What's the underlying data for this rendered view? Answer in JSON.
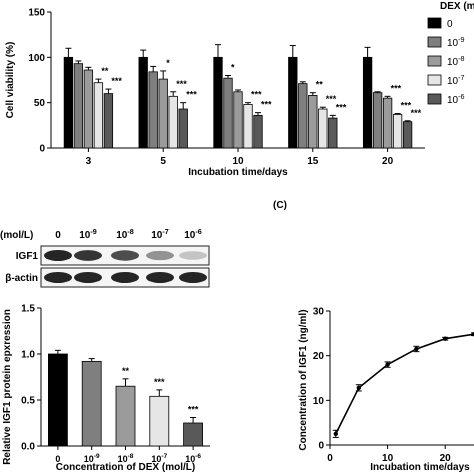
{
  "chart_data": [
    {
      "type": "bar",
      "ylabel": "Cell viability (%)",
      "xlabel": "Incubation time/days",
      "ylim": [
        0,
        150
      ],
      "yticks": [
        0,
        50,
        100,
        150
      ],
      "categories": [
        "3",
        "5",
        "10",
        "15",
        "20"
      ],
      "legend": {
        "title": "DEX (mo",
        "position": "right",
        "entries": [
          {
            "base": "0",
            "exp": "",
            "color": "#000000"
          },
          {
            "base": "10",
            "exp": "-9",
            "color": "#7f7f7f"
          },
          {
            "base": "10",
            "exp": "-8",
            "color": "#9b9b9b"
          },
          {
            "base": "10",
            "exp": "-7",
            "color": "#e6e6e6"
          },
          {
            "base": "10",
            "exp": "-6",
            "color": "#595959"
          }
        ]
      },
      "series": [
        {
          "values": [
            100,
            100,
            100,
            100,
            100
          ],
          "errors": [
            10,
            8,
            14,
            13,
            11
          ],
          "sig": [
            "",
            "",
            "",
            "",
            ""
          ]
        },
        {
          "values": [
            93,
            84,
            77,
            71,
            61
          ],
          "errors": [
            3,
            6,
            3,
            2,
            1
          ],
          "sig": [
            "",
            "",
            "*",
            "",
            ""
          ]
        },
        {
          "values": [
            86,
            76,
            62,
            58,
            55
          ],
          "errors": [
            3,
            9,
            2,
            3,
            2
          ],
          "sig": [
            "",
            "*",
            "",
            "**",
            "***"
          ]
        },
        {
          "values": [
            72,
            57,
            48,
            43,
            37
          ],
          "errors": [
            4,
            5,
            2,
            2,
            1
          ],
          "sig": [
            "**",
            "***",
            "***",
            "***",
            "***"
          ]
        },
        {
          "values": [
            60,
            43,
            36,
            33,
            29
          ],
          "errors": [
            5,
            7,
            3,
            3,
            1
          ],
          "sig": [
            "***",
            "***",
            "***",
            "***",
            "***"
          ]
        }
      ]
    },
    {
      "type": "bar",
      "ylabel": "Relative IGF1 protein epxression",
      "xlabel": "Concentration of DEX (mol/L)",
      "ylim": [
        0,
        1.5
      ],
      "yticks": [
        "0.0",
        "0.5",
        "1.0",
        "1.5"
      ],
      "categories": [
        {
          "base": "0",
          "exp": ""
        },
        {
          "base": "10",
          "exp": "-9"
        },
        {
          "base": "10",
          "exp": "-8"
        },
        {
          "base": "10",
          "exp": "-7"
        },
        {
          "base": "10",
          "exp": "-6"
        }
      ],
      "values": [
        1.0,
        0.92,
        0.65,
        0.54,
        0.25
      ],
      "errors": [
        0.04,
        0.03,
        0.08,
        0.07,
        0.06
      ],
      "sig": [
        "",
        "",
        "**",
        "***",
        "***"
      ],
      "colors": [
        "#000000",
        "#7f7f7f",
        "#9b9b9b",
        "#e6e6e6",
        "#595959"
      ]
    },
    {
      "type": "line",
      "title": "(C)",
      "ylabel": "Concentration of IGF1 (ng/ml)",
      "xlabel": "Incubation time/days",
      "xlim": [
        0,
        25
      ],
      "ylim": [
        0,
        30
      ],
      "xticks": [
        0,
        10,
        20
      ],
      "yticks": [
        0,
        10,
        20,
        30
      ],
      "x": [
        1,
        5,
        10,
        15,
        20,
        25
      ],
      "y": [
        2.5,
        12.8,
        18,
        21.5,
        23.8,
        24.8
      ],
      "errors": [
        0.8,
        0.7,
        0.6,
        0.6,
        0.3,
        0.3
      ]
    }
  ],
  "western_blot": {
    "unit": "(mol/L)",
    "lanes": [
      {
        "base": "0",
        "exp": ""
      },
      {
        "base": "10",
        "exp": "-9"
      },
      {
        "base": "10",
        "exp": "-8"
      },
      {
        "base": "10",
        "exp": "-7"
      },
      {
        "base": "10",
        "exp": "-6"
      }
    ],
    "rows": [
      {
        "label": "IGF1",
        "intensity": [
          1.0,
          0.92,
          0.8,
          0.45,
          0.2
        ]
      },
      {
        "label": "β-actin",
        "intensity": [
          1.0,
          1.0,
          1.0,
          1.0,
          1.0
        ]
      }
    ]
  }
}
